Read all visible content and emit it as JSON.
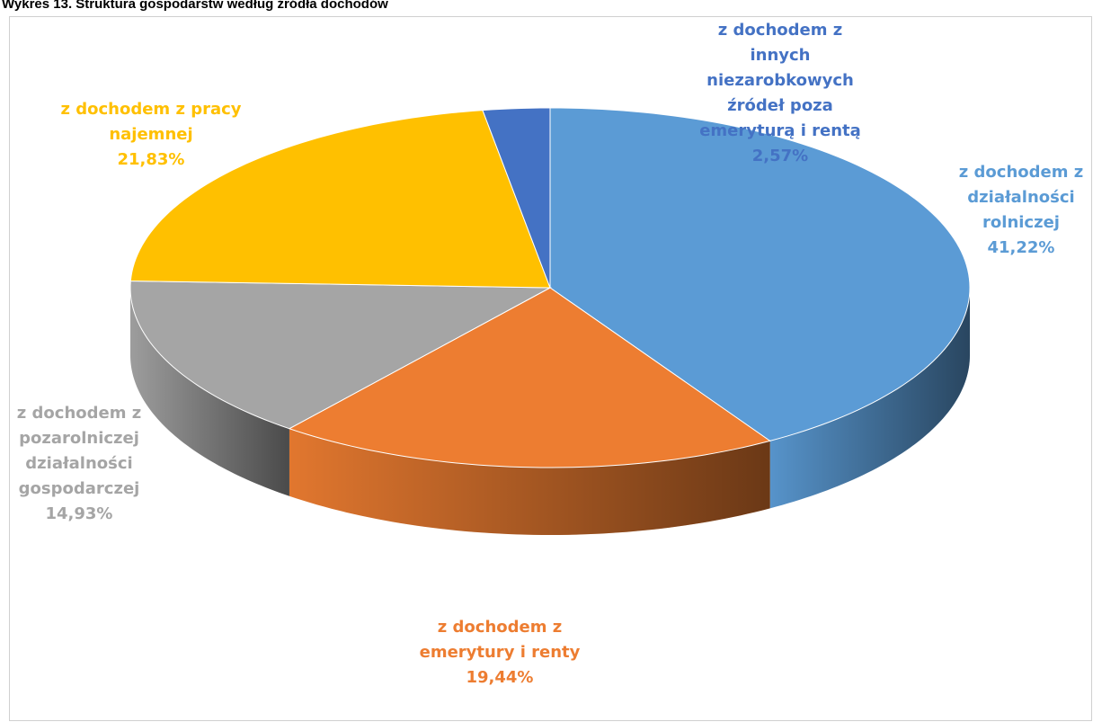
{
  "chart_data": {
    "type": "pie",
    "title": "Wykres 13. Struktura gospodarstw według źródła dochodów",
    "categories": [
      "z dochodem z działalności rolniczej",
      "z dochodem z emerytury i renty",
      "z dochodem z pozarolniczej działalności gospodarczej",
      "z dochodem z pracy najemnej",
      "z dochodem z innych niezarobkowych źródeł poza emeryturą i rentą"
    ],
    "values": [
      41.22,
      19.44,
      14.93,
      21.83,
      2.57
    ],
    "value_labels": [
      "41,22%",
      "19,44%",
      "14,93%",
      "21,83%",
      "2,57%"
    ],
    "colors": [
      "#5b9bd5",
      "#ed7d31",
      "#a5a5a5",
      "#ffc000",
      "#4472c4"
    ]
  }
}
